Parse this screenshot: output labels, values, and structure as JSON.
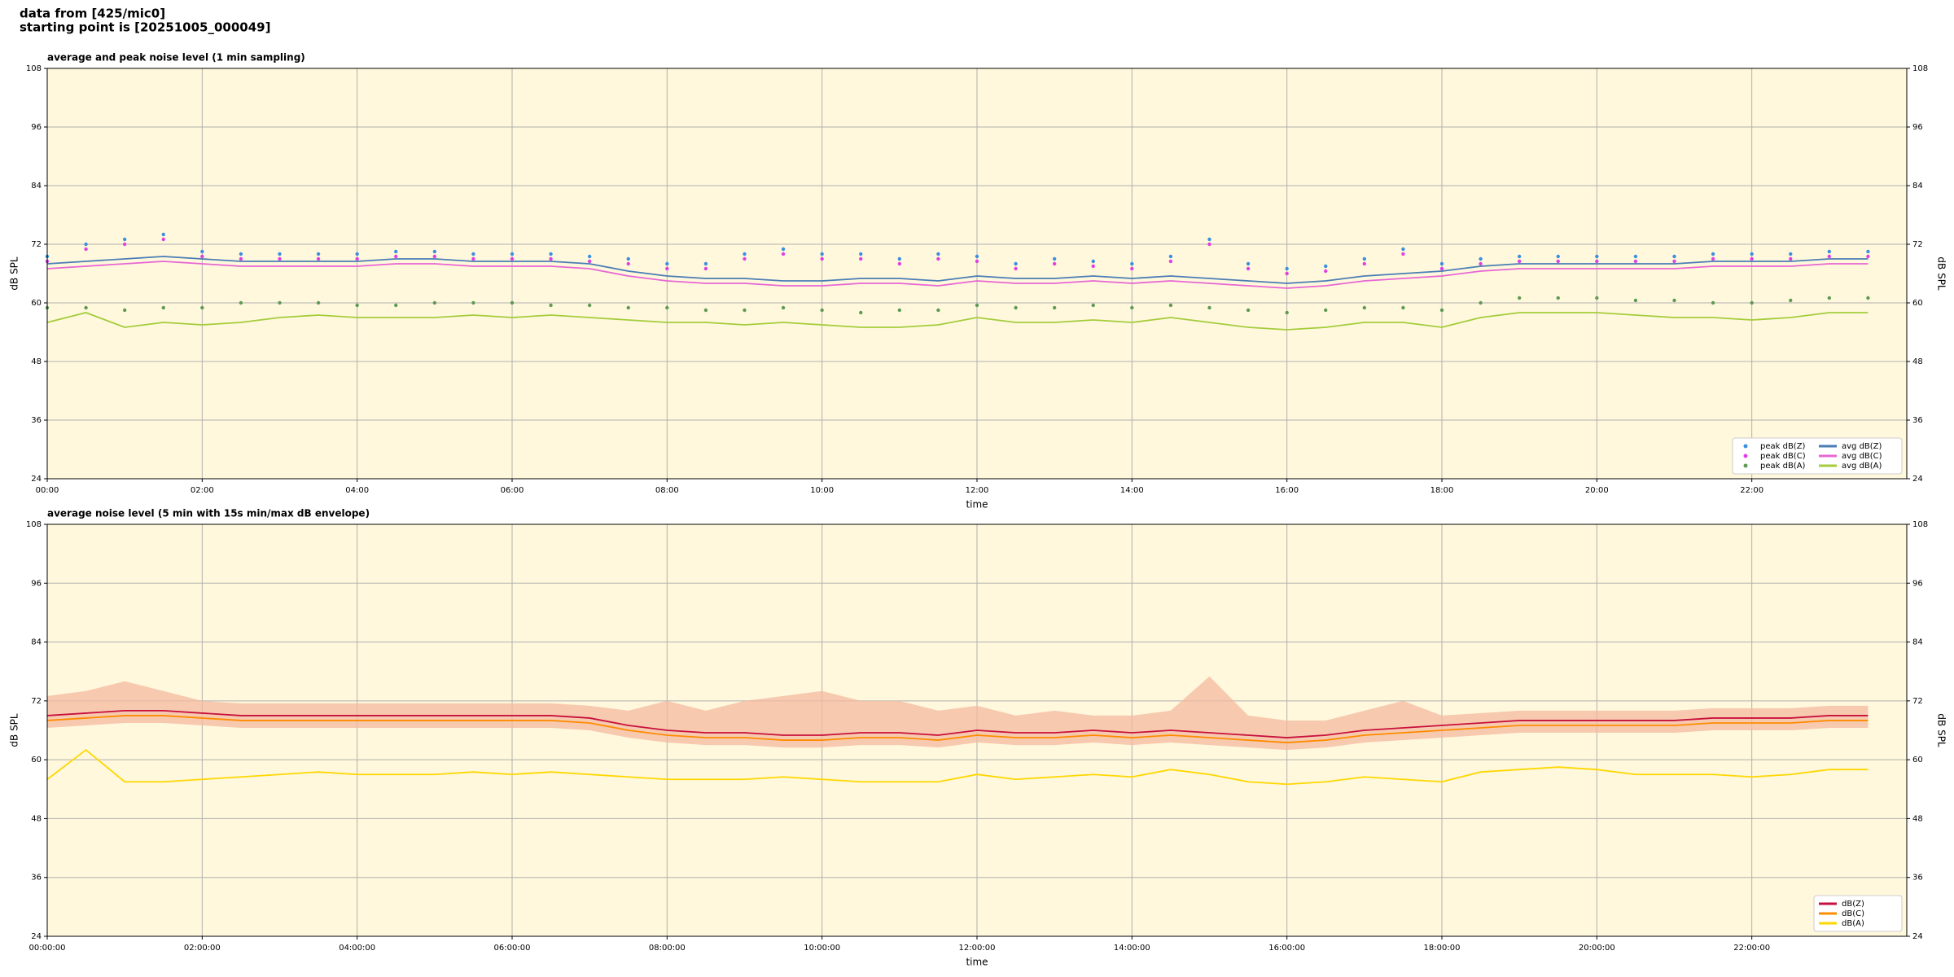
{
  "header": [
    "data from [425/mic0]",
    "starting point is [20251005_000049]"
  ],
  "chart_data": [
    {
      "type": "line",
      "title": "average and peak noise level (1 min sampling)",
      "xlabel": "time",
      "ylabel": "dB SPL",
      "x": [
        0,
        0.5,
        1,
        1.5,
        2,
        2.5,
        3,
        3.5,
        4,
        4.5,
        5,
        5.5,
        6,
        6.5,
        7,
        7.5,
        8,
        8.5,
        9,
        9.5,
        10,
        10.5,
        11,
        11.5,
        12,
        12.5,
        13,
        13.5,
        14,
        14.5,
        15,
        15.5,
        16,
        16.5,
        17,
        17.5,
        18,
        18.5,
        19,
        19.5,
        20,
        20.5,
        21,
        21.5,
        22,
        22.5,
        23,
        23.5
      ],
      "xlim": [
        0,
        24
      ],
      "xticks": [
        {
          "value": 0,
          "label": "00:00"
        },
        {
          "value": 2,
          "label": "02:00"
        },
        {
          "value": 4,
          "label": "04:00"
        },
        {
          "value": 6,
          "label": "06:00"
        },
        {
          "value": 8,
          "label": "08:00"
        },
        {
          "value": 10,
          "label": "10:00"
        },
        {
          "value": 12,
          "label": "12:00"
        },
        {
          "value": 14,
          "label": "14:00"
        },
        {
          "value": 16,
          "label": "16:00"
        },
        {
          "value": 18,
          "label": "18:00"
        },
        {
          "value": 20,
          "label": "20:00"
        },
        {
          "value": 22,
          "label": "22:00"
        }
      ],
      "ylim": [
        24,
        108
      ],
      "yticks": [
        24,
        36,
        48,
        60,
        72,
        84,
        96,
        108
      ],
      "grid": true,
      "legend": "lower right",
      "legend_columns": 2,
      "series": [
        {
          "name": "peak dB(Z)",
          "color": "#3b8fe0",
          "style": "points",
          "values": [
            69.5,
            72,
            73,
            74,
            70.5,
            70,
            70,
            70,
            70,
            70.5,
            70.5,
            70,
            70,
            70,
            69.5,
            69,
            68,
            68,
            70,
            71,
            70,
            70,
            69,
            70,
            69.5,
            68,
            69,
            68.5,
            68,
            69.5,
            73,
            68,
            67,
            67.5,
            69,
            71,
            68,
            69,
            69.5,
            69.5,
            69.5,
            69.5,
            69.5,
            70,
            70,
            70,
            70.5,
            70.5
          ]
        },
        {
          "name": "peak dB(C)",
          "color": "#e040e0",
          "style": "points",
          "values": [
            68.5,
            71,
            72,
            73,
            69.5,
            69,
            69,
            69,
            69,
            69.5,
            69.5,
            69,
            69,
            69,
            68.5,
            68,
            67,
            67,
            69,
            70,
            69,
            69,
            68,
            69,
            68.5,
            67,
            68,
            67.5,
            67,
            68.5,
            72,
            67,
            66,
            66.5,
            68,
            70,
            67,
            68,
            68.5,
            68.5,
            68.5,
            68.5,
            68.5,
            69,
            69,
            69,
            69.5,
            69.5
          ]
        },
        {
          "name": "peak dB(A)",
          "color": "#5f9a55",
          "style": "points",
          "values": [
            59,
            59,
            58.5,
            59,
            59,
            60,
            60,
            60,
            59.5,
            59.5,
            60,
            60,
            60,
            59.5,
            59.5,
            59,
            59,
            58.5,
            58.5,
            59,
            58.5,
            58,
            58.5,
            58.5,
            59.5,
            59,
            59,
            59.5,
            59,
            59.5,
            59,
            58.5,
            58,
            58.5,
            59,
            59,
            58.5,
            60,
            61,
            61,
            61,
            60.5,
            60.5,
            60,
            60,
            60.5,
            61,
            61
          ]
        },
        {
          "name": "avg dB(Z)",
          "color": "#4a7db5",
          "style": "line",
          "values": [
            68,
            68.5,
            69,
            69.5,
            69,
            68.5,
            68.5,
            68.5,
            68.5,
            69,
            69,
            68.5,
            68.5,
            68.5,
            68,
            66.5,
            65.5,
            65,
            65,
            64.5,
            64.5,
            65,
            65,
            64.5,
            65.5,
            65,
            65,
            65.5,
            65,
            65.5,
            65,
            64.5,
            64,
            64.5,
            65.5,
            66,
            66.5,
            67.5,
            68,
            68,
            68,
            68,
            68,
            68.5,
            68.5,
            68.5,
            69,
            69
          ]
        },
        {
          "name": "avg dB(C)",
          "color": "#e866d4",
          "style": "line",
          "values": [
            67,
            67.5,
            68,
            68.5,
            68,
            67.5,
            67.5,
            67.5,
            67.5,
            68,
            68,
            67.5,
            67.5,
            67.5,
            67,
            65.5,
            64.5,
            64,
            64,
            63.5,
            63.5,
            64,
            64,
            63.5,
            64.5,
            64,
            64,
            64.5,
            64,
            64.5,
            64,
            63.5,
            63,
            63.5,
            64.5,
            65,
            65.5,
            66.5,
            67,
            67,
            67,
            67,
            67,
            67.5,
            67.5,
            67.5,
            68,
            68
          ]
        },
        {
          "name": "avg dB(A)",
          "color": "#a4cc3c",
          "style": "line",
          "values": [
            56,
            58,
            55,
            56,
            55.5,
            56,
            57,
            57.5,
            57,
            57,
            57,
            57.5,
            57,
            57.5,
            57,
            56.5,
            56,
            56,
            55.5,
            56,
            55.5,
            55,
            55,
            55.5,
            57,
            56,
            56,
            56.5,
            56,
            57,
            56,
            55,
            54.5,
            55,
            56,
            56,
            55,
            57,
            58,
            58,
            58,
            57.5,
            57,
            57,
            56.5,
            57,
            58,
            58
          ]
        }
      ]
    },
    {
      "type": "line",
      "title": "average noise level (5 min with 15s min/max dB envelope)",
      "xlabel": "time",
      "ylabel": "dB SPL",
      "x": [
        0,
        0.5,
        1,
        1.5,
        2,
        2.5,
        3,
        3.5,
        4,
        4.5,
        5,
        5.5,
        6,
        6.5,
        7,
        7.5,
        8,
        8.5,
        9,
        9.5,
        10,
        10.5,
        11,
        11.5,
        12,
        12.5,
        13,
        13.5,
        14,
        14.5,
        15,
        15.5,
        16,
        16.5,
        17,
        17.5,
        18,
        18.5,
        19,
        19.5,
        20,
        20.5,
        21,
        21.5,
        22,
        22.5,
        23,
        23.5
      ],
      "xlim": [
        0,
        24
      ],
      "xticks": [
        {
          "value": 0,
          "label": "00:00:00"
        },
        {
          "value": 2,
          "label": "02:00:00"
        },
        {
          "value": 4,
          "label": "04:00:00"
        },
        {
          "value": 6,
          "label": "06:00:00"
        },
        {
          "value": 8,
          "label": "08:00:00"
        },
        {
          "value": 10,
          "label": "10:00:00"
        },
        {
          "value": 12,
          "label": "12:00:00"
        },
        {
          "value": 14,
          "label": "14:00:00"
        },
        {
          "value": 16,
          "label": "16:00:00"
        },
        {
          "value": 18,
          "label": "18:00:00"
        },
        {
          "value": 20,
          "label": "20:00:00"
        },
        {
          "value": 22,
          "label": "22:00:00"
        }
      ],
      "ylim": [
        24,
        108
      ],
      "yticks": [
        24,
        36,
        48,
        60,
        72,
        84,
        96,
        108
      ],
      "grid": true,
      "legend": "lower right",
      "legend_columns": 1,
      "envelope": {
        "color": "#f4b9a0",
        "upper": [
          73,
          74,
          76,
          74,
          72,
          71.5,
          71.5,
          71.5,
          71.5,
          71.5,
          71.5,
          71.5,
          71.5,
          71.5,
          71,
          70,
          72,
          70,
          72,
          73,
          74,
          72,
          72,
          70,
          71,
          69,
          70,
          69,
          69,
          70,
          77,
          69,
          68,
          68,
          70,
          72,
          69,
          69.5,
          70,
          70,
          70,
          70,
          70,
          70.5,
          70.5,
          70.5,
          71,
          71
        ],
        "lower": [
          66.5,
          67,
          67.5,
          67.5,
          67,
          66.5,
          66.5,
          66.5,
          66.5,
          66.5,
          66.5,
          66.5,
          66.5,
          66.5,
          66,
          64.5,
          63.5,
          63,
          63,
          62.5,
          62.5,
          63,
          63,
          62.5,
          63.5,
          63,
          63,
          63.5,
          63,
          63.5,
          63,
          62.5,
          62,
          62.5,
          63.5,
          64,
          64.5,
          65,
          65.5,
          65.5,
          65.5,
          65.5,
          65.5,
          66,
          66,
          66,
          66.5,
          66.5
        ]
      },
      "series": [
        {
          "name": "dB(Z)",
          "color": "#c8103c",
          "style": "line",
          "values": [
            69,
            69.5,
            70,
            70,
            69.5,
            69,
            69,
            69,
            69,
            69,
            69,
            69,
            69,
            69,
            68.5,
            67,
            66,
            65.5,
            65.5,
            65,
            65,
            65.5,
            65.5,
            65,
            66,
            65.5,
            65.5,
            66,
            65.5,
            66,
            65.5,
            65,
            64.5,
            65,
            66,
            66.5,
            67,
            67.5,
            68,
            68,
            68,
            68,
            68,
            68.5,
            68.5,
            68.5,
            69,
            69
          ]
        },
        {
          "name": "dB(C)",
          "color": "#ff8c00",
          "style": "line",
          "values": [
            68,
            68.5,
            69,
            69,
            68.5,
            68,
            68,
            68,
            68,
            68,
            68,
            68,
            68,
            68,
            67.5,
            66,
            65,
            64.5,
            64.5,
            64,
            64,
            64.5,
            64.5,
            64,
            65,
            64.5,
            64.5,
            65,
            64.5,
            65,
            64.5,
            64,
            63.5,
            64,
            65,
            65.5,
            66,
            66.5,
            67,
            67,
            67,
            67,
            67,
            67.5,
            67.5,
            67.5,
            68,
            68
          ]
        },
        {
          "name": "dB(A)",
          "color": "#ffd700",
          "style": "line",
          "values": [
            56,
            62,
            55.5,
            55.5,
            56,
            56.5,
            57,
            57.5,
            57,
            57,
            57,
            57.5,
            57,
            57.5,
            57,
            56.5,
            56,
            56,
            56,
            56.5,
            56,
            55.5,
            55.5,
            55.5,
            57,
            56,
            56.5,
            57,
            56.5,
            58,
            57,
            55.5,
            55,
            55.5,
            56.5,
            56,
            55.5,
            57.5,
            58,
            58.5,
            58,
            57,
            57,
            57,
            56.5,
            57,
            58,
            58
          ]
        }
      ]
    }
  ]
}
